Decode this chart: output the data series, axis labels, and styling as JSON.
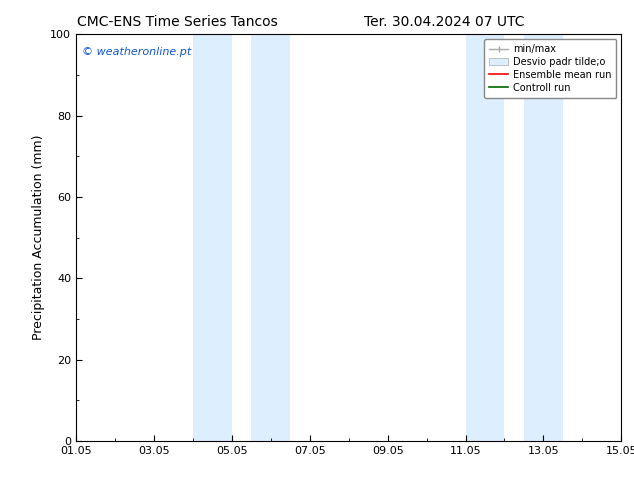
{
  "title_left": "CMC-ENS Time Series Tancos",
  "title_right": "Ter. 30.04.2024 07 UTC",
  "ylabel": "Precipitation Accumulation (mm)",
  "watermark": "© weatheronline.pt",
  "watermark_color": "#1155cc",
  "ylim": [
    0,
    100
  ],
  "yticks": [
    0,
    20,
    40,
    60,
    80,
    100
  ],
  "x_start": 0.0,
  "x_end": 14.0,
  "xtick_labels": [
    "01.05",
    "03.05",
    "05.05",
    "07.05",
    "09.05",
    "11.05",
    "13.05",
    "15.05"
  ],
  "xtick_positions": [
    0,
    2,
    4,
    6,
    8,
    10,
    12,
    14
  ],
  "shaded_regions": [
    {
      "xmin": 3.0,
      "xmax": 4.0,
      "color": "#ddeeff"
    },
    {
      "xmin": 4.5,
      "xmax": 5.5,
      "color": "#ddeeff"
    },
    {
      "xmin": 10.0,
      "xmax": 11.0,
      "color": "#ddeeff"
    },
    {
      "xmin": 11.5,
      "xmax": 12.5,
      "color": "#ddeeff"
    }
  ],
  "legend_entries": [
    {
      "label": "min/max",
      "color": "#aaaaaa",
      "style": "errorbar"
    },
    {
      "label": "Desvio padr tilde;o",
      "color": "#ddeeff",
      "style": "fill"
    },
    {
      "label": "Ensemble mean run",
      "color": "#ff0000",
      "style": "line"
    },
    {
      "label": "Controll run",
      "color": "#006600",
      "style": "line"
    }
  ],
  "bg_color": "#ffffff",
  "plot_bg_color": "#ffffff",
  "spine_color": "#000000",
  "tick_color": "#000000",
  "title_fontsize": 10,
  "label_fontsize": 9,
  "tick_fontsize": 8,
  "watermark_fontsize": 8,
  "legend_fontsize": 7
}
